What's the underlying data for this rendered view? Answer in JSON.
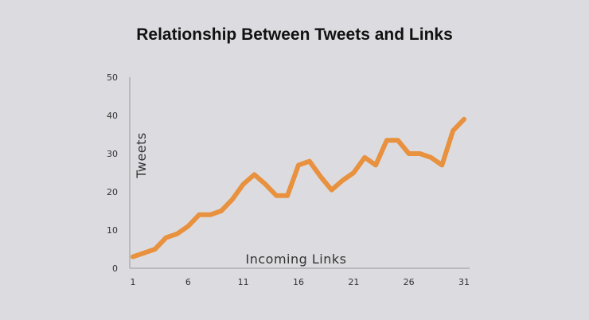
{
  "chart_data": {
    "type": "line",
    "title": "Relationship Between Tweets and Links",
    "xlabel": "Incoming Links",
    "ylabel": "Tweets",
    "ylim": [
      0,
      50
    ],
    "xlim": [
      1,
      31
    ],
    "yticks": [
      0,
      10,
      20,
      30,
      40,
      50
    ],
    "xticks": [
      1,
      6,
      11,
      16,
      21,
      26,
      31
    ],
    "grid": false,
    "x": [
      1,
      2,
      3,
      4,
      5,
      6,
      7,
      8,
      9,
      10,
      11,
      12,
      13,
      14,
      15,
      16,
      17,
      18,
      19,
      20,
      21,
      22,
      23,
      24,
      25,
      26,
      27,
      28,
      29,
      30,
      31
    ],
    "series": [
      {
        "name": "Tweets",
        "color": "#e8913f",
        "values": [
          3,
          4,
          5,
          8,
          9,
          11,
          14,
          14,
          15,
          18,
          22,
          24.5,
          22,
          19,
          19,
          27,
          28,
          24,
          20.5,
          23,
          25,
          29,
          27,
          33.5,
          33.5,
          30,
          30,
          29,
          27,
          36,
          39
        ]
      }
    ]
  }
}
